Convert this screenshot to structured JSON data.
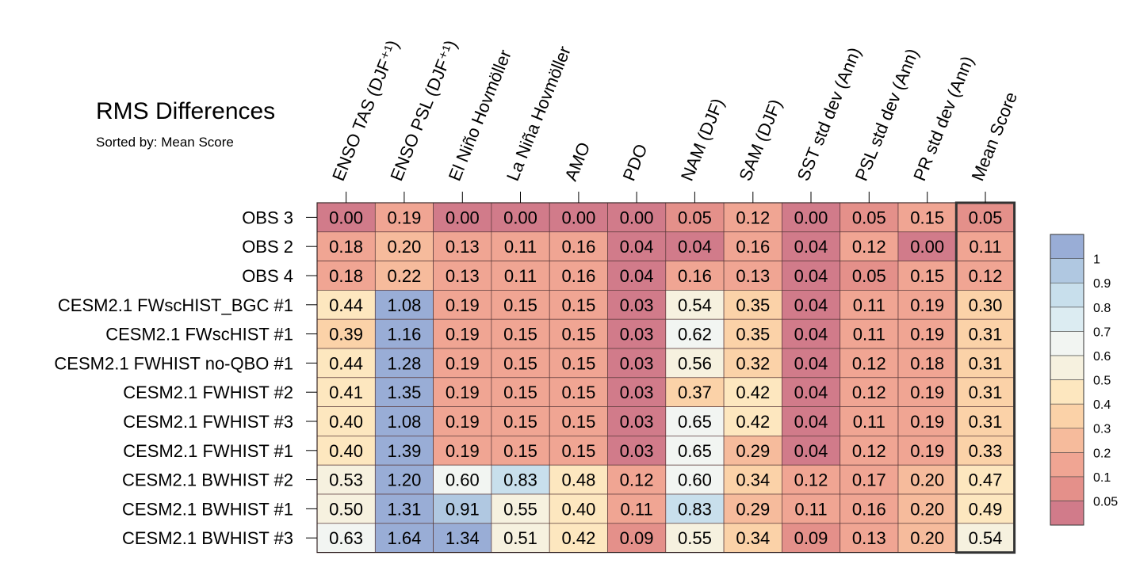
{
  "chart_data": {
    "type": "heatmap",
    "title": "RMS Differences",
    "subtitle": "Sorted by: Mean Score",
    "columns": [
      "ENSO TAS (DJF⁺¹)",
      "ENSO PSL (DJF⁺¹)",
      "El Niño Hovmöller",
      "La Niña Hovmöller",
      "AMO",
      "PDO",
      "NAM (DJF)",
      "SAM (DJF)",
      "SST std dev (Ann)",
      "PSL std dev (Ann)",
      "PR std dev (Ann)",
      "Mean Score"
    ],
    "rows": [
      "OBS 3",
      "OBS 2",
      "OBS 4",
      "CESM2.1 FWscHIST_BGC #1",
      "CESM2.1 FWscHIST #1",
      "CESM2.1 FWHIST no-QBO #1",
      "CESM2.1 FWHIST #2",
      "CESM2.1 FWHIST #3",
      "CESM2.1 FWHIST #1",
      "CESM2.1 BWHIST #2",
      "CESM2.1 BWHIST #1",
      "CESM2.1 BWHIST #3"
    ],
    "values": [
      [
        "0.00",
        "0.19",
        "0.00",
        "0.00",
        "0.00",
        "0.00",
        "0.05",
        "0.12",
        "0.00",
        "0.05",
        "0.15",
        "0.05"
      ],
      [
        "0.18",
        "0.20",
        "0.13",
        "0.11",
        "0.16",
        "0.04",
        "0.04",
        "0.16",
        "0.04",
        "0.12",
        "0.00",
        "0.11"
      ],
      [
        "0.18",
        "0.22",
        "0.13",
        "0.11",
        "0.16",
        "0.04",
        "0.16",
        "0.13",
        "0.04",
        "0.05",
        "0.15",
        "0.12"
      ],
      [
        "0.44",
        "1.08",
        "0.19",
        "0.15",
        "0.15",
        "0.03",
        "0.54",
        "0.35",
        "0.04",
        "0.11",
        "0.19",
        "0.30"
      ],
      [
        "0.39",
        "1.16",
        "0.19",
        "0.15",
        "0.15",
        "0.03",
        "0.62",
        "0.35",
        "0.04",
        "0.11",
        "0.19",
        "0.31"
      ],
      [
        "0.44",
        "1.28",
        "0.19",
        "0.15",
        "0.15",
        "0.03",
        "0.56",
        "0.32",
        "0.04",
        "0.12",
        "0.18",
        "0.31"
      ],
      [
        "0.41",
        "1.35",
        "0.19",
        "0.15",
        "0.15",
        "0.03",
        "0.37",
        "0.42",
        "0.04",
        "0.12",
        "0.19",
        "0.31"
      ],
      [
        "0.40",
        "1.08",
        "0.19",
        "0.15",
        "0.15",
        "0.03",
        "0.65",
        "0.42",
        "0.04",
        "0.11",
        "0.19",
        "0.31"
      ],
      [
        "0.40",
        "1.39",
        "0.19",
        "0.15",
        "0.15",
        "0.03",
        "0.65",
        "0.29",
        "0.04",
        "0.12",
        "0.19",
        "0.33"
      ],
      [
        "0.53",
        "1.20",
        "0.60",
        "0.83",
        "0.48",
        "0.12",
        "0.60",
        "0.34",
        "0.12",
        "0.17",
        "0.20",
        "0.47"
      ],
      [
        "0.50",
        "1.31",
        "0.91",
        "0.55",
        "0.40",
        "0.11",
        "0.83",
        "0.29",
        "0.11",
        "0.16",
        "0.20",
        "0.49"
      ],
      [
        "0.63",
        "1.64",
        "1.34",
        "0.51",
        "0.42",
        "0.09",
        "0.55",
        "0.34",
        "0.09",
        "0.13",
        "0.20",
        "0.54"
      ]
    ],
    "colorbar": {
      "levels": [
        0.05,
        0.1,
        0.2,
        0.3,
        0.4,
        0.5,
        0.6,
        0.7,
        0.8,
        0.9,
        1
      ],
      "tick_labels": [
        "0.05",
        "0.1",
        "0.2",
        "0.3",
        "0.4",
        "0.5",
        "0.6",
        "0.7",
        "0.8",
        "0.9",
        "1"
      ],
      "colors": [
        "#d17b8a",
        "#e4908a",
        "#f0a593",
        "#f6bb9c",
        "#fbd2a8",
        "#fde7bf",
        "#f6f1df",
        "#f2f5f2",
        "#dcecf2",
        "#c8dfec",
        "#b0c8e1",
        "#99add6"
      ]
    },
    "highlight_column": "Mean Score"
  }
}
